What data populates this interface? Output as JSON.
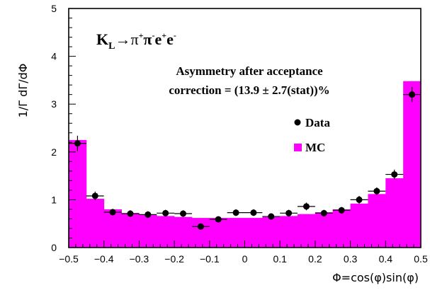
{
  "chart_data": {
    "type": "bar",
    "xlabel": "Φ=cos(φ)sin(φ)",
    "ylabel": "1/Γ dΓ/dΦ",
    "xlim": [
      -0.5,
      0.5
    ],
    "ylim": [
      0,
      5
    ],
    "x_ticks": [
      "−0.5",
      "−0.4",
      "−0.3",
      "−0.2",
      "−0.1",
      "0",
      "0.1",
      "0.2",
      "0.3",
      "0.4",
      "0.5"
    ],
    "y_ticks": [
      "0",
      "1",
      "2",
      "3",
      "4",
      "5"
    ],
    "bin_edges": [
      -0.5,
      -0.45,
      -0.4,
      -0.35,
      -0.3,
      -0.25,
      -0.2,
      -0.15,
      -0.1,
      -0.05,
      0.0,
      0.05,
      0.1,
      0.15,
      0.2,
      0.25,
      0.3,
      0.35,
      0.4,
      0.45,
      0.5
    ],
    "series": [
      {
        "name": "MC",
        "kind": "histogram",
        "color": "#ff00ff",
        "values": [
          2.25,
          1.02,
          0.8,
          0.72,
          0.68,
          0.66,
          0.64,
          0.62,
          0.62,
          0.62,
          0.62,
          0.64,
          0.66,
          0.7,
          0.74,
          0.8,
          0.92,
          1.12,
          1.45,
          3.48
        ]
      },
      {
        "name": "Data",
        "kind": "points",
        "color": "#000000",
        "x": [
          -0.475,
          -0.425,
          -0.375,
          -0.325,
          -0.275,
          -0.225,
          -0.175,
          -0.125,
          -0.075,
          -0.025,
          0.025,
          0.075,
          0.125,
          0.175,
          0.225,
          0.275,
          0.325,
          0.375,
          0.425,
          0.475
        ],
        "y": [
          2.18,
          1.08,
          0.74,
          0.71,
          0.69,
          0.72,
          0.71,
          0.44,
          0.59,
          0.73,
          0.73,
          0.65,
          0.72,
          0.86,
          0.72,
          0.78,
          1.0,
          1.18,
          1.53,
          3.2
        ],
        "yerr": [
          0.16,
          0.09,
          0.07,
          0.07,
          0.07,
          0.07,
          0.07,
          0.06,
          0.06,
          0.07,
          0.07,
          0.06,
          0.07,
          0.08,
          0.07,
          0.07,
          0.08,
          0.08,
          0.1,
          0.16
        ]
      }
    ],
    "annotations": {
      "reaction_main": "K",
      "reaction_sub": "L",
      "reaction_arrow": "→π",
      "reaction_sup1": "+",
      "reaction_pi2": "π",
      "reaction_sup2": "-",
      "reaction_e1": "e",
      "reaction_sup3": "+",
      "reaction_e2": "e",
      "reaction_sup4": "-",
      "asym_line1": "Asymmetry after acceptance",
      "asym_line2": "correction = (13.9 ± 2.7(stat))%"
    },
    "legend": {
      "placement": "center-right",
      "entries": [
        {
          "label": "Data",
          "marker": "dot"
        },
        {
          "label": "MC",
          "marker": "square"
        }
      ]
    }
  }
}
